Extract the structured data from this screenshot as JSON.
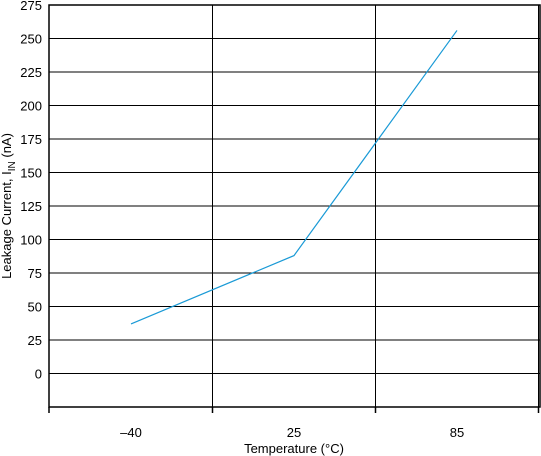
{
  "chart_data": {
    "type": "line",
    "title": "",
    "xlabel": "Temperature (°C)",
    "ylabel": {
      "main": "Leakage Current, I",
      "subscript": "IN",
      "unit": " (nA)"
    },
    "x_tick_labels": [
      "–40",
      "25",
      "85"
    ],
    "x_tick_values": [
      -40,
      25,
      85
    ],
    "y_tick_labels": [
      "275",
      "250",
      "225",
      "200",
      "175",
      "150",
      "125",
      "100",
      "75",
      "50",
      "25",
      "0"
    ],
    "y_tick_values": [
      275,
      250,
      225,
      200,
      175,
      150,
      125,
      100,
      75,
      50,
      25,
      0
    ],
    "ylim": [
      -25,
      275
    ],
    "grid": true,
    "series": [
      {
        "x": [
          -40,
          25,
          85
        ],
        "y": [
          37,
          88,
          256
        ],
        "color": "#1a9ad6"
      }
    ]
  }
}
